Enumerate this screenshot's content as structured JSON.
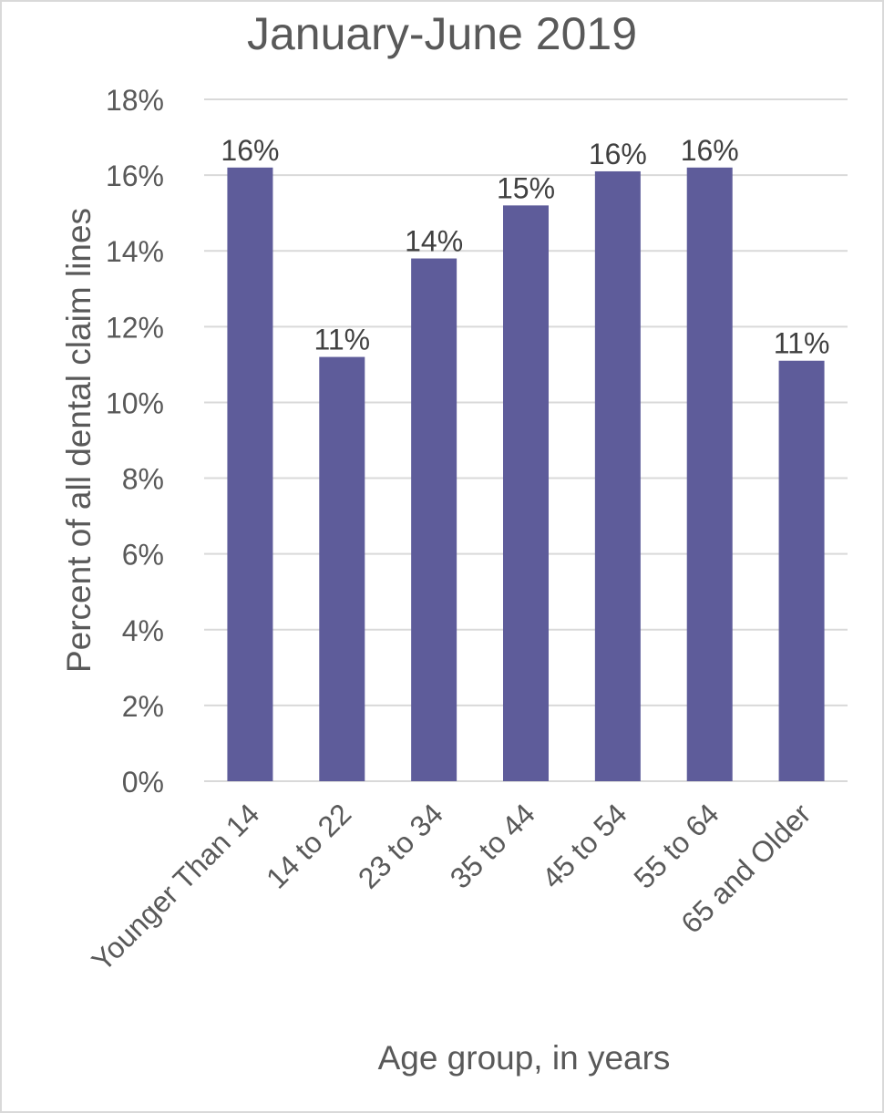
{
  "chart_data": {
    "type": "bar",
    "title": "January-June 2019",
    "xlabel": "Age group, in years",
    "ylabel": "Percent of all dental claim lines",
    "categories": [
      "Younger Than 14",
      "14 to 22",
      "23 to 34",
      "35 to 44",
      "45 to 54",
      "55 to 64",
      "65 and Older"
    ],
    "values": [
      16.2,
      11.2,
      13.8,
      15.2,
      16.1,
      16.2,
      11.1
    ],
    "data_labels": [
      "16%",
      "11%",
      "14%",
      "15%",
      "16%",
      "16%",
      "11%"
    ],
    "ylim": [
      0,
      18
    ],
    "yticks": [
      0,
      2,
      4,
      6,
      8,
      10,
      12,
      14,
      16,
      18
    ],
    "ytick_labels": [
      "0%",
      "2%",
      "4%",
      "6%",
      "8%",
      "10%",
      "12%",
      "14%",
      "16%",
      "18%"
    ],
    "bar_color": "#5e5c9a",
    "grid": true,
    "legend": "none"
  }
}
